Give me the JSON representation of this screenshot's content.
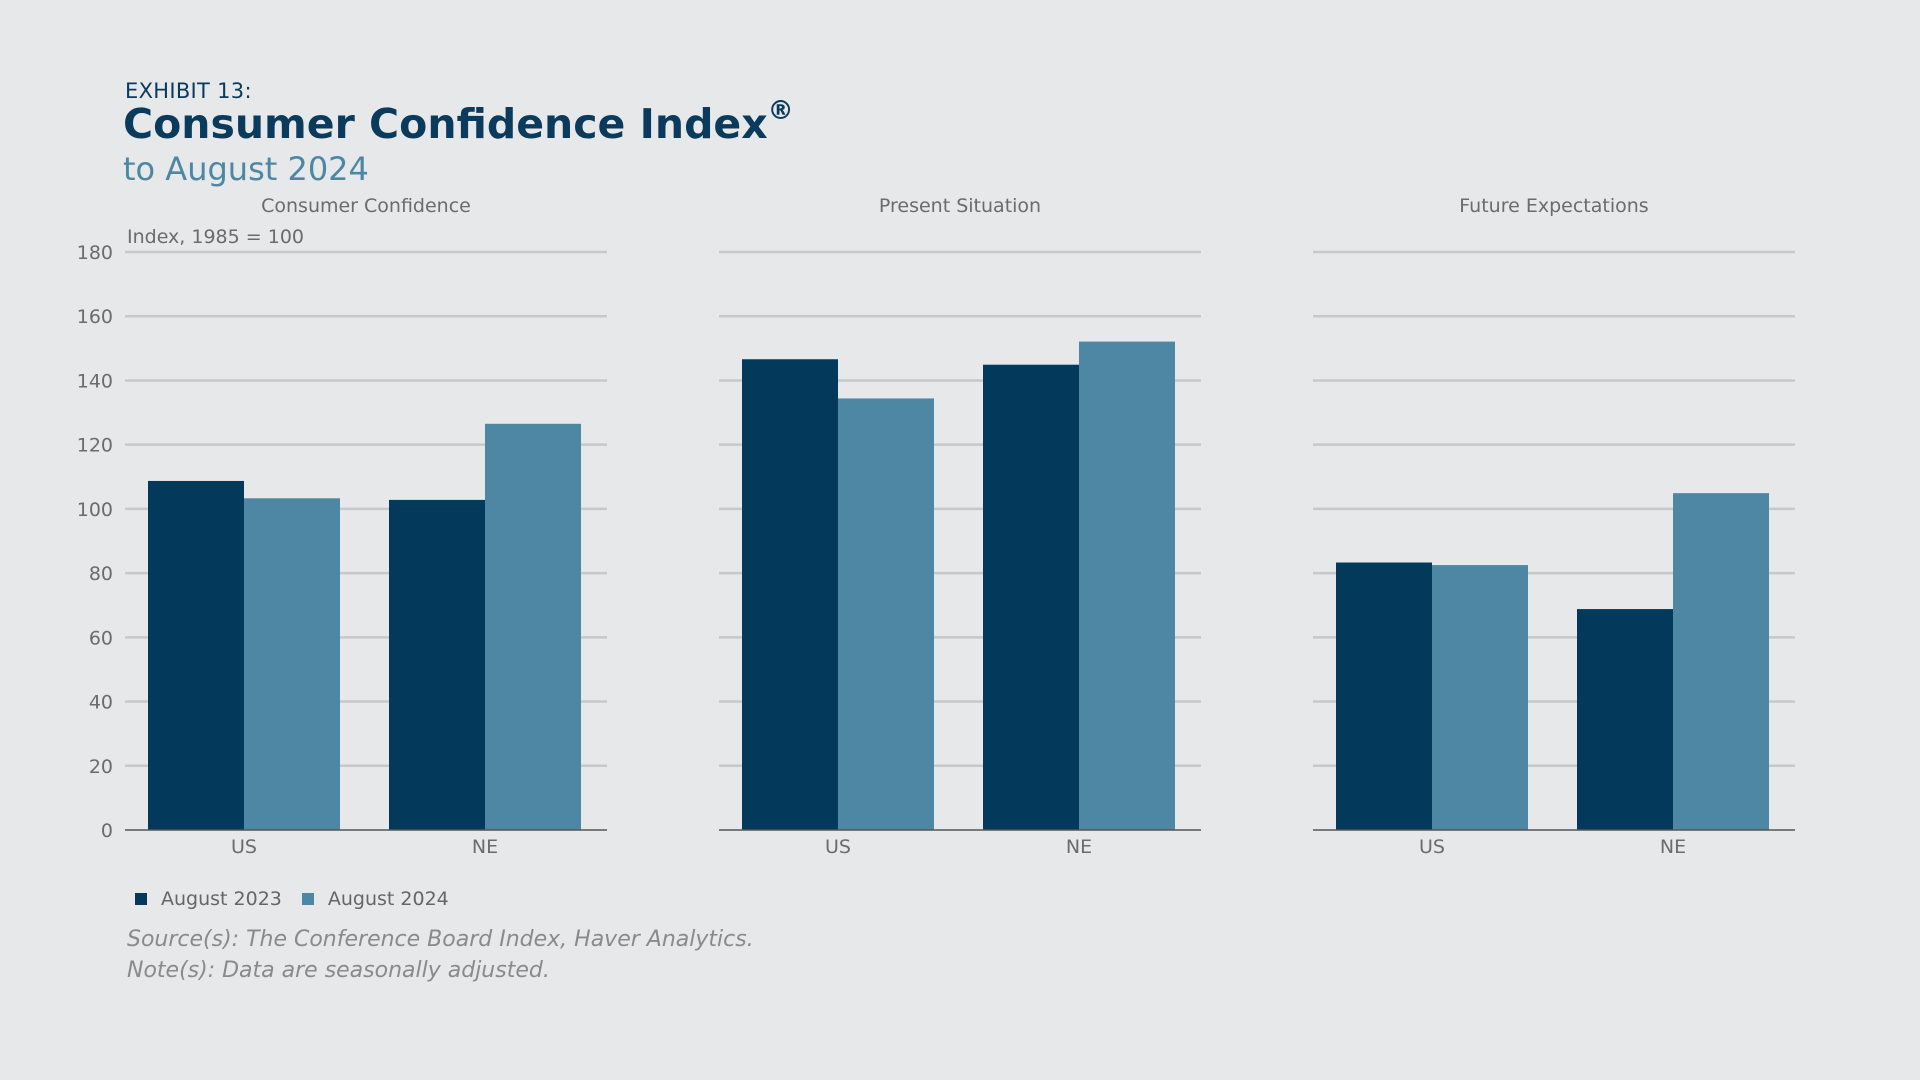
{
  "header": {
    "exhibit": "EXHIBIT 13:",
    "title": "Consumer Confidence Index",
    "title_mark": "®",
    "subtitle": "to August 2024"
  },
  "colors": {
    "august_2023": "#033a5c",
    "august_2024": "#4e87a3",
    "grid": "#c6c8ca",
    "axis_text": "#6b6b6b"
  },
  "chart_data": [
    {
      "type": "bar",
      "title": "Consumer Confidence",
      "ylabel": "Index, 1985 = 100",
      "ylim": [
        0,
        180
      ],
      "yticks": [
        0,
        20,
        40,
        60,
        80,
        100,
        120,
        140,
        160,
        180
      ],
      "grid": true,
      "categories": [
        "US",
        "NE"
      ],
      "series": [
        {
          "name": "August 2023",
          "values": [
            108.7,
            102.8
          ]
        },
        {
          "name": "August 2024",
          "values": [
            103.3,
            126.5
          ]
        }
      ]
    },
    {
      "type": "bar",
      "title": "Present Situation",
      "ylim": [
        0,
        180
      ],
      "grid": true,
      "categories": [
        "US",
        "NE"
      ],
      "series": [
        {
          "name": "August 2023",
          "values": [
            146.6,
            144.9
          ]
        },
        {
          "name": "August 2024",
          "values": [
            134.4,
            152.1
          ]
        }
      ]
    },
    {
      "type": "bar",
      "title": "Future Expectations",
      "ylim": [
        0,
        180
      ],
      "grid": true,
      "categories": [
        "US",
        "NE"
      ],
      "series": [
        {
          "name": "August 2023",
          "values": [
            83.3,
            68.8
          ]
        },
        {
          "name": "August 2024",
          "values": [
            82.5,
            104.9
          ]
        }
      ]
    }
  ],
  "legend": {
    "placement": "bottom-left",
    "items": [
      "August 2023",
      "August 2024"
    ]
  },
  "notes": {
    "source": "Source(s): The Conference Board Index, Haver Analytics.",
    "note": "Note(s): Data are seasonally adjusted."
  }
}
